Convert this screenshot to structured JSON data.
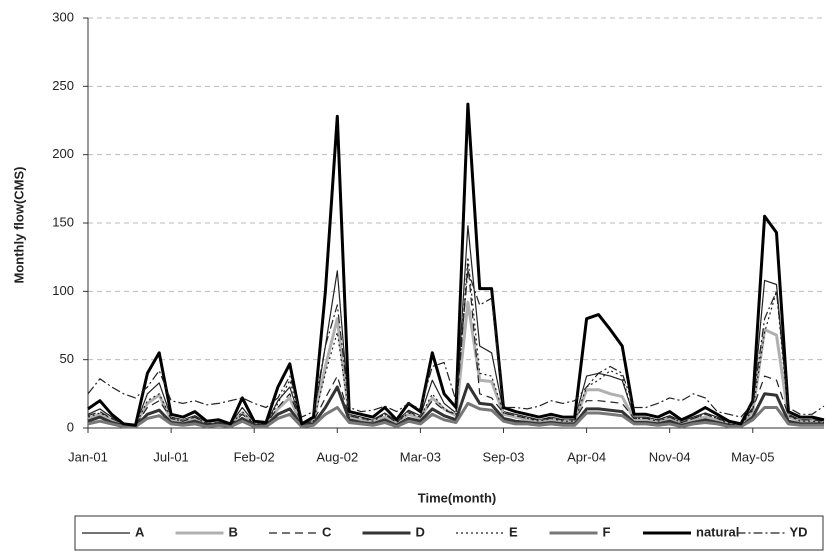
{
  "chart_data": {
    "type": "line",
    "x_label": "Time(month)",
    "y_label": "Monthly flow(CMS)",
    "categories": [
      "Jan-01",
      null,
      null,
      null,
      null,
      null,
      null,
      "Jul-01",
      null,
      null,
      null,
      null,
      null,
      null,
      "Feb-02",
      null,
      null,
      null,
      null,
      null,
      null,
      "Aug-02",
      null,
      null,
      null,
      null,
      null,
      null,
      "Mar-03",
      null,
      null,
      null,
      null,
      null,
      null,
      "Sep-03",
      null,
      null,
      null,
      null,
      null,
      null,
      "Apr-04",
      null,
      null,
      null,
      null,
      null,
      null,
      "Nov-04",
      null,
      null,
      null,
      null,
      null,
      null,
      "May-05",
      null,
      null,
      null,
      null,
      null,
      null
    ],
    "ylim": [
      0,
      300
    ],
    "yticks": [
      0,
      50,
      100,
      150,
      200,
      250,
      300
    ],
    "grid": true,
    "series": [
      {
        "name": "A",
        "color": "#222222",
        "width": 1.2,
        "dash": "none",
        "values": [
          10,
          14,
          8,
          3,
          2,
          25,
          33,
          8,
          6,
          9,
          4,
          5,
          3,
          15,
          4,
          3,
          20,
          30,
          3,
          6,
          60,
          115,
          10,
          8,
          6,
          11,
          5,
          13,
          9,
          35,
          18,
          11,
          148,
          60,
          55,
          12,
          10,
          8,
          6,
          8,
          6,
          6,
          38,
          40,
          38,
          35,
          8,
          8,
          6,
          9,
          5,
          8,
          11,
          8,
          4,
          3,
          15,
          108,
          105,
          10,
          6,
          6,
          5
        ]
      },
      {
        "name": "B",
        "color": "#b0b0b0",
        "width": 3,
        "dash": "none",
        "values": [
          7,
          10,
          6,
          2,
          2,
          18,
          24,
          6,
          5,
          7,
          3,
          4,
          2,
          11,
          3,
          2,
          14,
          22,
          2,
          5,
          45,
          80,
          8,
          6,
          5,
          8,
          4,
          10,
          7,
          22,
          14,
          9,
          92,
          35,
          34,
          10,
          8,
          6,
          5,
          6,
          5,
          5,
          28,
          28,
          25,
          23,
          6,
          6,
          5,
          7,
          4,
          6,
          8,
          6,
          3,
          2,
          12,
          72,
          68,
          8,
          5,
          5,
          4
        ]
      },
      {
        "name": "C",
        "color": "#222222",
        "width": 1.2,
        "dash": "8 5",
        "values": [
          9,
          12,
          7,
          3,
          2,
          15,
          20,
          7,
          5,
          8,
          3,
          4,
          2,
          10,
          3,
          3,
          15,
          25,
          3,
          5,
          22,
          38,
          9,
          7,
          6,
          10,
          4,
          12,
          8,
          20,
          13,
          10,
          120,
          25,
          22,
          11,
          9,
          7,
          6,
          7,
          6,
          6,
          20,
          20,
          19,
          18,
          7,
          7,
          6,
          8,
          4,
          7,
          10,
          7,
          4,
          3,
          14,
          38,
          35,
          9,
          6,
          6,
          5
        ]
      },
      {
        "name": "D",
        "color": "#333333",
        "width": 3,
        "dash": "none",
        "values": [
          5,
          8,
          4,
          2,
          1,
          10,
          13,
          4,
          3,
          5,
          2,
          3,
          1,
          7,
          2,
          2,
          10,
          14,
          2,
          3,
          15,
          30,
          6,
          4,
          3,
          6,
          2,
          7,
          5,
          14,
          9,
          6,
          32,
          18,
          17,
          7,
          5,
          4,
          3,
          4,
          3,
          3,
          14,
          14,
          13,
          12,
          4,
          4,
          3,
          5,
          2,
          4,
          6,
          4,
          2,
          1,
          8,
          25,
          24,
          5,
          3,
          3,
          3
        ]
      },
      {
        "name": "E",
        "color": "#222222",
        "width": 1.2,
        "dash": "2 3",
        "values": [
          8,
          11,
          7,
          3,
          2,
          20,
          25,
          7,
          5,
          8,
          3,
          4,
          2,
          12,
          3,
          3,
          18,
          35,
          3,
          5,
          40,
          70,
          9,
          7,
          5,
          10,
          4,
          11,
          8,
          25,
          14,
          10,
          125,
          40,
          38,
          11,
          9,
          7,
          5,
          7,
          5,
          5,
          30,
          35,
          42,
          38,
          7,
          7,
          5,
          8,
          4,
          7,
          10,
          7,
          3,
          2,
          13,
          70,
          100,
          9,
          5,
          5,
          4
        ]
      },
      {
        "name": "F",
        "color": "#777777",
        "width": 3,
        "dash": "none",
        "values": [
          3,
          5,
          3,
          1,
          1,
          7,
          9,
          3,
          2,
          3,
          1,
          2,
          1,
          5,
          1,
          1,
          7,
          10,
          1,
          2,
          10,
          15,
          4,
          3,
          2,
          4,
          1,
          5,
          3,
          10,
          6,
          4,
          18,
          14,
          13,
          5,
          3,
          3,
          2,
          3,
          2,
          2,
          11,
          11,
          10,
          9,
          3,
          3,
          2,
          3,
          1,
          3,
          4,
          3,
          1,
          1,
          6,
          15,
          15,
          3,
          2,
          2,
          2
        ]
      },
      {
        "name": "natural",
        "color": "#000000",
        "width": 3,
        "dash": "none",
        "values": [
          14,
          20,
          10,
          3,
          2,
          40,
          55,
          10,
          8,
          12,
          5,
          6,
          3,
          22,
          5,
          4,
          30,
          47,
          3,
          8,
          100,
          228,
          12,
          10,
          8,
          15,
          6,
          18,
          12,
          55,
          25,
          15,
          237,
          102,
          102,
          15,
          12,
          10,
          8,
          10,
          8,
          8,
          80,
          83,
          72,
          60,
          10,
          10,
          8,
          12,
          6,
          10,
          15,
          10,
          5,
          3,
          20,
          155,
          143,
          12,
          8,
          8,
          6
        ]
      },
      {
        "name": "YD",
        "color": "#222222",
        "width": 1.2,
        "dash": "9 3 2 3",
        "values": [
          25,
          36,
          30,
          25,
          22,
          30,
          42,
          20,
          18,
          20,
          17,
          18,
          20,
          22,
          18,
          15,
          22,
          38,
          8,
          12,
          60,
          90,
          15,
          12,
          13,
          16,
          12,
          18,
          14,
          45,
          48,
          20,
          115,
          90,
          95,
          15,
          15,
          14,
          16,
          20,
          18,
          20,
          30,
          40,
          45,
          40,
          15,
          15,
          18,
          22,
          20,
          25,
          22,
          12,
          10,
          8,
          18,
          80,
          100,
          15,
          10,
          10,
          16
        ]
      }
    ]
  }
}
